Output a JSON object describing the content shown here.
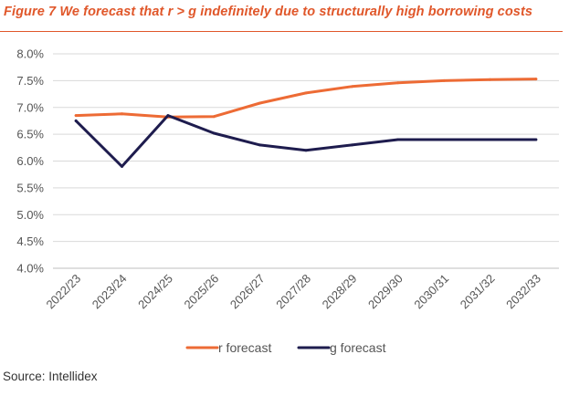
{
  "title": "Figure 7 We forecast that r > g indefinitely due to structurally high borrowing costs",
  "source": "Source: Intellidex",
  "colors": {
    "accent": "#e0572a",
    "r_series": "#ed6b35",
    "g_series": "#1e1c4e",
    "grid": "#d9d9d9"
  },
  "chart_data": {
    "type": "line",
    "categories": [
      "2022/23",
      "2023/24",
      "2024/25",
      "2025/26",
      "2026/27",
      "2027/28",
      "2028/29",
      "2029/30",
      "2030/31",
      "2031/32",
      "2032/33"
    ],
    "series": [
      {
        "name": "r forecast",
        "color": "#ed6b35",
        "values": [
          6.85,
          6.88,
          6.82,
          6.83,
          7.08,
          7.27,
          7.39,
          7.46,
          7.5,
          7.52,
          7.53
        ]
      },
      {
        "name": "g forecast",
        "color": "#1e1c4e",
        "values": [
          6.75,
          5.9,
          6.85,
          6.52,
          6.3,
          6.2,
          6.3,
          6.4,
          6.4,
          6.4,
          6.4
        ]
      }
    ],
    "yticks": [
      "4.0%",
      "4.5%",
      "5.0%",
      "5.5%",
      "6.0%",
      "6.5%",
      "7.0%",
      "7.5%",
      "8.0%"
    ],
    "ylim": [
      4.0,
      8.0
    ],
    "grid": true,
    "legend": "bottom"
  }
}
